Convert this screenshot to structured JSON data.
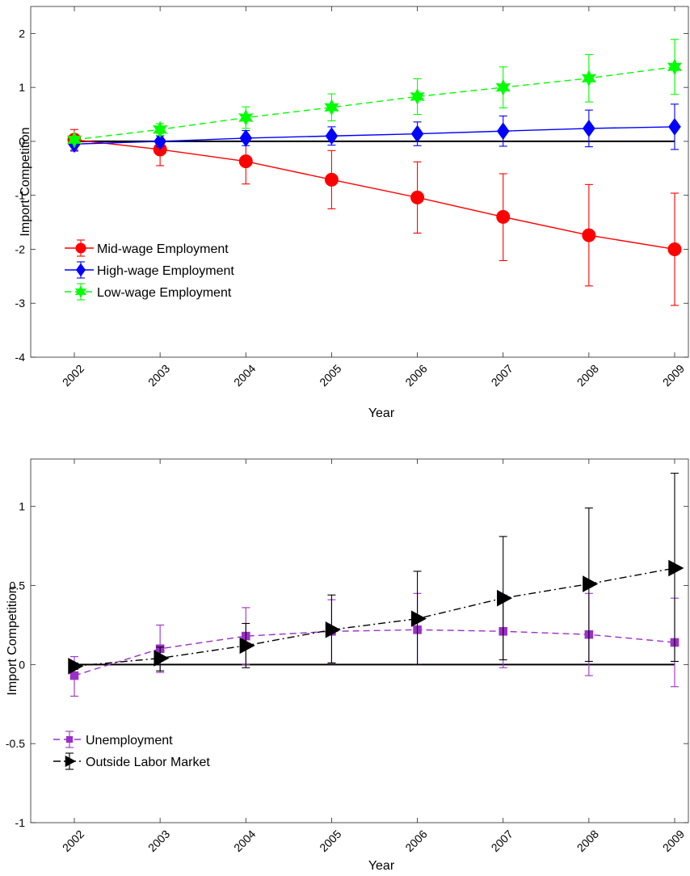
{
  "chart_data": [
    {
      "type": "line",
      "xlabel": "Year",
      "ylabel": "Import Competition",
      "ylim": [
        -4,
        2.5
      ],
      "yticks": [
        -4,
        -3,
        -2,
        -1,
        0,
        1,
        2
      ],
      "x": [
        2002,
        2003,
        2004,
        2005,
        2006,
        2007,
        2008,
        2009
      ],
      "legend_position": "lower-left",
      "zero_line": true,
      "series": [
        {
          "name": "Mid-wage Employment",
          "color": "#ff0000",
          "marker": "circle",
          "dash": "solid",
          "values": [
            0.03,
            -0.15,
            -0.37,
            -0.71,
            -1.04,
            -1.4,
            -1.74,
            -2.0
          ],
          "lower": [
            -0.16,
            -0.45,
            -0.79,
            -1.25,
            -1.7,
            -2.21,
            -2.68,
            -3.04
          ],
          "upper": [
            0.22,
            0.15,
            0.05,
            -0.17,
            -0.38,
            -0.6,
            -0.8,
            -0.96
          ]
        },
        {
          "name": "High-wage Employment",
          "color": "#0000ff",
          "marker": "diamond",
          "dash": "solid",
          "values": [
            -0.05,
            0.0,
            0.06,
            0.1,
            0.14,
            0.19,
            0.24,
            0.27
          ],
          "lower": [
            -0.18,
            -0.1,
            -0.08,
            -0.07,
            -0.08,
            -0.09,
            -0.1,
            -0.15
          ],
          "upper": [
            0.08,
            0.1,
            0.2,
            0.27,
            0.36,
            0.47,
            0.58,
            0.69
          ]
        },
        {
          "name": "Low-wage Employment",
          "color": "#00ff00",
          "marker": "hexagram",
          "dash": "dashed",
          "values": [
            0.03,
            0.22,
            0.44,
            0.63,
            0.83,
            1.0,
            1.17,
            1.38
          ],
          "lower": [
            -0.02,
            0.11,
            0.24,
            0.38,
            0.5,
            0.62,
            0.73,
            0.87
          ],
          "upper": [
            0.08,
            0.33,
            0.64,
            0.88,
            1.16,
            1.38,
            1.61,
            1.89
          ]
        }
      ]
    },
    {
      "type": "line",
      "xlabel": "Year",
      "ylabel": "Import Competition",
      "ylim": [
        -1,
        1.3
      ],
      "yticks": [
        -1,
        -0.5,
        0,
        0.5,
        1
      ],
      "x": [
        2002,
        2003,
        2004,
        2005,
        2006,
        2007,
        2008,
        2009
      ],
      "legend_position": "lower-left",
      "zero_line": true,
      "series": [
        {
          "name": "Unemployment",
          "color": "#9b30c8",
          "marker": "square",
          "dash": "dashed",
          "values": [
            -0.07,
            0.1,
            0.18,
            0.21,
            0.22,
            0.21,
            0.19,
            0.14
          ],
          "lower": [
            -0.2,
            -0.05,
            0.0,
            0.01,
            0.0,
            -0.02,
            -0.07,
            -0.14
          ],
          "upper": [
            0.05,
            0.25,
            0.36,
            0.41,
            0.45,
            0.44,
            0.45,
            0.42
          ]
        },
        {
          "name": "Outside Labor Market",
          "color": "#000000",
          "marker": "triangle-right",
          "dash": "dashdot",
          "values": [
            -0.01,
            0.04,
            0.12,
            0.22,
            0.29,
            0.42,
            0.51,
            0.61
          ],
          "lower": [
            -0.03,
            -0.04,
            -0.02,
            0.01,
            0.0,
            0.03,
            0.02,
            0.02
          ],
          "upper": [
            0.01,
            0.11,
            0.26,
            0.44,
            0.59,
            0.81,
            0.99,
            1.21
          ]
        }
      ]
    }
  ]
}
